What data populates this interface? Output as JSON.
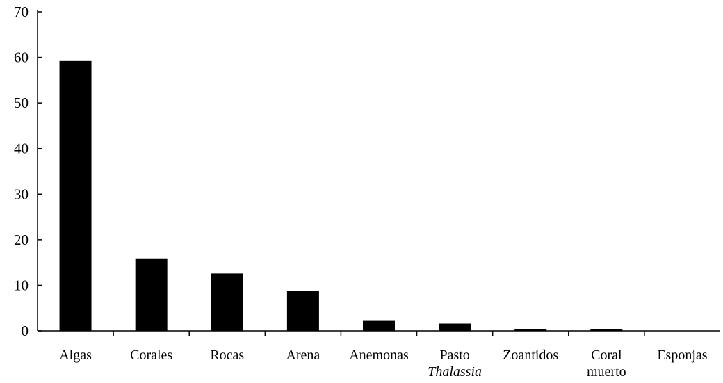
{
  "chart_data": {
    "type": "bar",
    "categories": [
      [
        "Algas"
      ],
      [
        "Corales"
      ],
      [
        "Rocas"
      ],
      [
        "Arena"
      ],
      [
        "Anemonas"
      ],
      [
        "Pasto",
        "Thalassia"
      ],
      [
        "Zoantidos"
      ],
      [
        "Coral",
        "muerto"
      ],
      [
        "Esponjas"
      ]
    ],
    "italic_lines": [
      [],
      [],
      [],
      [],
      [],
      [
        1
      ],
      [],
      [],
      []
    ],
    "values": [
      59.2,
      15.9,
      12.6,
      8.7,
      2.2,
      1.6,
      0.4,
      0.4,
      0
    ],
    "ylim": [
      0,
      70
    ],
    "yticks": [
      0,
      10,
      20,
      30,
      40,
      50,
      60,
      70
    ],
    "grid": false,
    "bar_color": "#000000",
    "title": "",
    "xlabel": "",
    "ylabel": ""
  }
}
